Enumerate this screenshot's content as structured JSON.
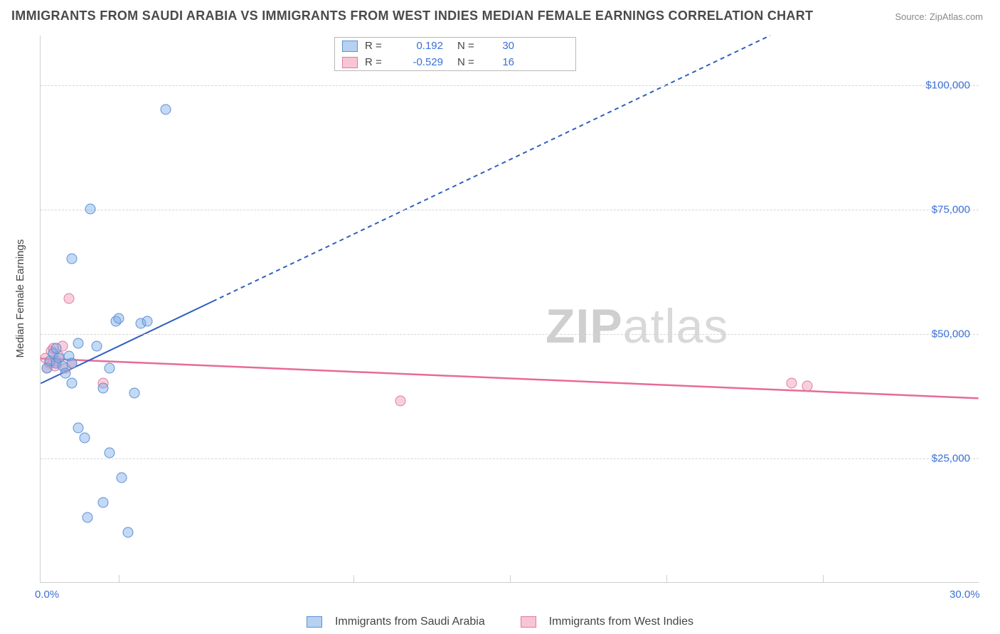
{
  "title": "IMMIGRANTS FROM SAUDI ARABIA VS IMMIGRANTS FROM WEST INDIES MEDIAN FEMALE EARNINGS CORRELATION CHART",
  "source": "Source: ZipAtlas.com",
  "watermark_bold": "ZIP",
  "watermark_rest": "atlas",
  "yaxis_title": "Median Female Earnings",
  "chart": {
    "type": "scatter",
    "x_range": [
      0,
      30
    ],
    "y_range": [
      0,
      110000
    ],
    "x_ticks_minor": [
      2.5,
      10,
      15,
      20,
      25
    ],
    "x_labels": [
      {
        "v": 0,
        "t": "0.0%"
      },
      {
        "v": 30,
        "t": "30.0%"
      }
    ],
    "y_gridlines": [
      {
        "v": 25000,
        "t": "$25,000"
      },
      {
        "v": 50000,
        "t": "$50,000"
      },
      {
        "v": 75000,
        "t": "$75,000"
      },
      {
        "v": 100000,
        "t": "$100,000"
      }
    ],
    "background_color": "#ffffff",
    "grid_color": "#d6d6d6",
    "axis_color": "#cfcfcf",
    "marker_size": 15
  },
  "series_blue": {
    "name": "Immigrants from Saudi Arabia",
    "fill": "rgba(124,171,230,0.45)",
    "stroke": "#5a91d6",
    "R": "0.192",
    "N": "30",
    "points": [
      [
        0.2,
        43000
      ],
      [
        0.3,
        44500
      ],
      [
        0.4,
        46000
      ],
      [
        0.5,
        44000
      ],
      [
        0.5,
        47000
      ],
      [
        0.6,
        45000
      ],
      [
        0.7,
        43500
      ],
      [
        0.8,
        42000
      ],
      [
        0.9,
        45500
      ],
      [
        1.0,
        44000
      ],
      [
        1.0,
        65000
      ],
      [
        1.2,
        48000
      ],
      [
        1.2,
        31000
      ],
      [
        1.4,
        29000
      ],
      [
        1.5,
        13000
      ],
      [
        1.6,
        75000
      ],
      [
        1.8,
        47500
      ],
      [
        2.0,
        16000
      ],
      [
        2.0,
        39000
      ],
      [
        2.2,
        26000
      ],
      [
        2.2,
        43000
      ],
      [
        2.4,
        52500
      ],
      [
        2.5,
        53000
      ],
      [
        2.6,
        21000
      ],
      [
        2.8,
        10000
      ],
      [
        3.0,
        38000
      ],
      [
        3.2,
        52000
      ],
      [
        3.4,
        52500
      ],
      [
        4.0,
        95000
      ],
      [
        1.0,
        40000
      ]
    ],
    "trend": {
      "x1": 0,
      "y1": 40000,
      "x2": 30,
      "y2": 130000,
      "solid_until_x": 5.5,
      "color": "#2f5fbf",
      "width": 2,
      "dash": "6,5"
    }
  },
  "series_pink": {
    "name": "Immigrants from West Indies",
    "fill": "rgba(240,150,180,0.45)",
    "stroke": "#e07aa0",
    "R": "-0.529",
    "N": "16",
    "points": [
      [
        0.15,
        45000
      ],
      [
        0.2,
        43000
      ],
      [
        0.3,
        44000
      ],
      [
        0.35,
        46500
      ],
      [
        0.4,
        47000
      ],
      [
        0.45,
        43500
      ],
      [
        0.5,
        44500
      ],
      [
        0.6,
        45500
      ],
      [
        0.7,
        47500
      ],
      [
        0.8,
        43000
      ],
      [
        0.9,
        57000
      ],
      [
        1.0,
        44000
      ],
      [
        2.0,
        40000
      ],
      [
        11.5,
        36500
      ],
      [
        24.0,
        40000
      ],
      [
        24.5,
        39500
      ]
    ],
    "trend": {
      "x1": 0,
      "y1": 45000,
      "x2": 30,
      "y2": 37000,
      "color": "#e86a9a",
      "width": 2.5
    }
  },
  "legend": {
    "r_label": "R =",
    "n_label": "N ="
  }
}
